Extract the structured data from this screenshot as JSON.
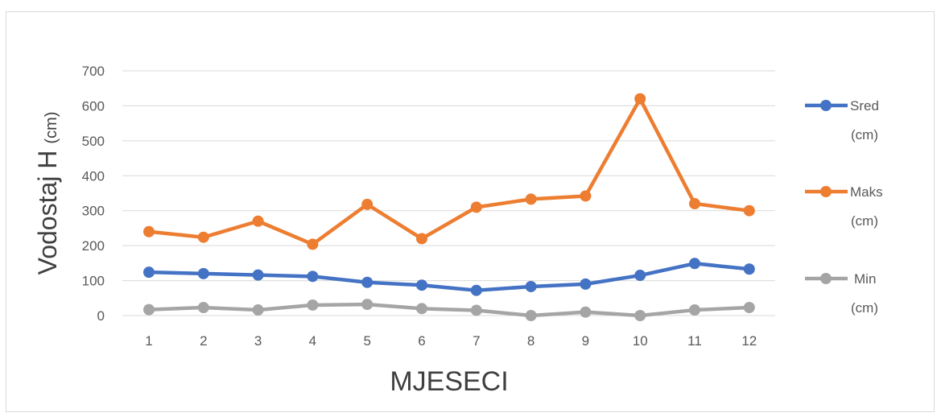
{
  "chart_data": {
    "type": "line",
    "title": "",
    "xlabel": "MJESECI",
    "ylabel_main": "Vodostaj H",
    "ylabel_unit": "(cm)",
    "categories": [
      "1",
      "2",
      "3",
      "4",
      "5",
      "6",
      "7",
      "8",
      "9",
      "10",
      "11",
      "12"
    ],
    "ylim": [
      0,
      700
    ],
    "yticks": [
      0,
      100,
      200,
      300,
      400,
      500,
      600,
      700
    ],
    "grid": true,
    "legend_position": "right",
    "series": [
      {
        "name_line1": "Sred",
        "name_line2": "(cm)",
        "color": "#4472c4",
        "values": [
          124,
          120,
          116,
          112,
          95,
          87,
          72,
          83,
          90,
          115,
          149,
          133
        ]
      },
      {
        "name_line1": "Maks",
        "name_line2": "(cm)",
        "color": "#ed7d31",
        "values": [
          240,
          224,
          270,
          204,
          318,
          220,
          310,
          333,
          342,
          620,
          320,
          300
        ]
      },
      {
        "name_line1": "Min",
        "name_line2": "(cm)",
        "color": "#a5a5a5",
        "values": [
          17,
          23,
          16,
          30,
          32,
          20,
          15,
          0,
          10,
          0,
          16,
          23
        ]
      }
    ]
  }
}
